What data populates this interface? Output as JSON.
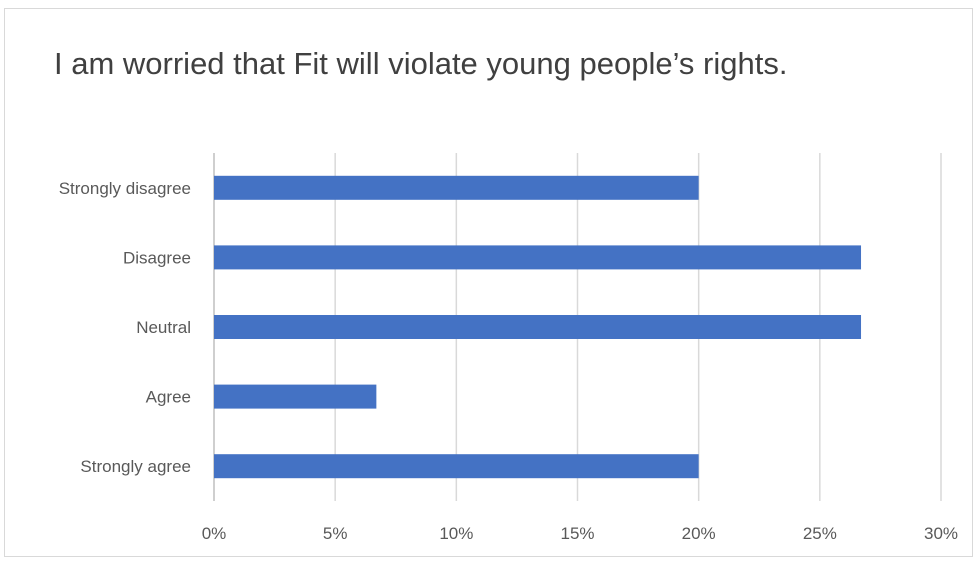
{
  "chart_data": {
    "type": "bar",
    "orientation": "horizontal",
    "title": "I am worried that Fit will violate young people’s rights.",
    "categories": [
      "Strongly disagree",
      "Disagree",
      "Neutral",
      "Agree",
      "Strongly agree"
    ],
    "values": [
      20.0,
      26.7,
      26.7,
      6.7,
      20.0
    ],
    "unit": "%",
    "xlim": [
      0,
      30
    ],
    "xticks": [
      0,
      5,
      10,
      15,
      20,
      25,
      30
    ],
    "xtick_labels": [
      "0%",
      "5%",
      "10%",
      "15%",
      "20%",
      "25%",
      "30%"
    ],
    "xlabel": "",
    "ylabel": "",
    "grid": "vertical",
    "legend": "none",
    "bar_color": "#4472C4"
  }
}
